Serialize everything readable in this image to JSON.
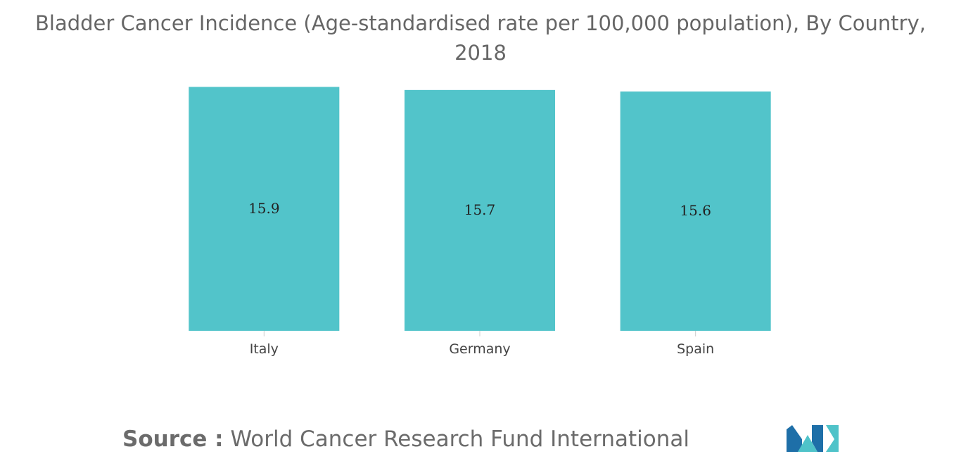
{
  "chart_data": {
    "type": "bar",
    "title": "Bladder Cancer Incidence (Age-standardised rate per 100,000 population), By Country, 2018",
    "categories": [
      "Italy",
      "Germany",
      "Spain"
    ],
    "values": [
      15.9,
      15.7,
      15.6
    ],
    "data_labels": [
      "15.9",
      "15.7",
      "15.6"
    ],
    "xlabel": "",
    "ylabel": "",
    "ylim": [
      0,
      16
    ],
    "grid": false,
    "legend": "none",
    "bar_color": "#52c4ca"
  },
  "title": {
    "line1": "Bladder Cancer Incidence (Age-standardised rate per 100,000 population), By Country,",
    "line2": "2018"
  },
  "source": {
    "label": "Source :",
    "text": "World Cancer Research Fund International"
  },
  "logo": {
    "icon": "mordor-intelligence-logo",
    "colors": [
      "#1e6fa8",
      "#4fc3c9"
    ]
  }
}
